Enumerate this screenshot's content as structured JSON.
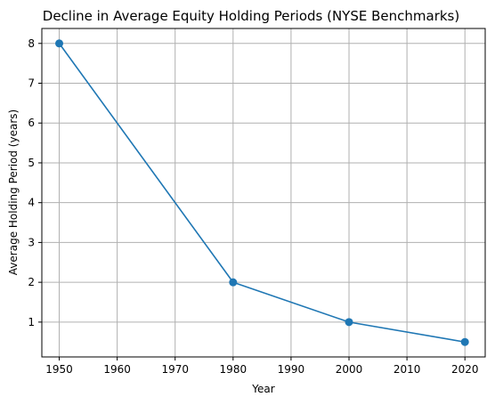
{
  "chart_data": {
    "type": "line",
    "title": "Decline in Average Equity Holding Periods (NYSE Benchmarks)",
    "xlabel": "Year",
    "ylabel": "Average Holding Period (years)",
    "x": [
      1950,
      1980,
      2000,
      2020
    ],
    "series": [
      {
        "values": [
          8,
          2,
          1,
          0.5
        ],
        "color": "#1f77b4",
        "marker": "circle"
      }
    ],
    "xlim": [
      1947,
      2023.5
    ],
    "ylim": [
      0.125,
      8.375
    ],
    "xticks": [
      1950,
      1960,
      1970,
      1980,
      1990,
      2000,
      2010,
      2020
    ],
    "yticks": [
      1,
      2,
      3,
      4,
      5,
      6,
      7,
      8
    ],
    "grid": true,
    "legend": false
  }
}
